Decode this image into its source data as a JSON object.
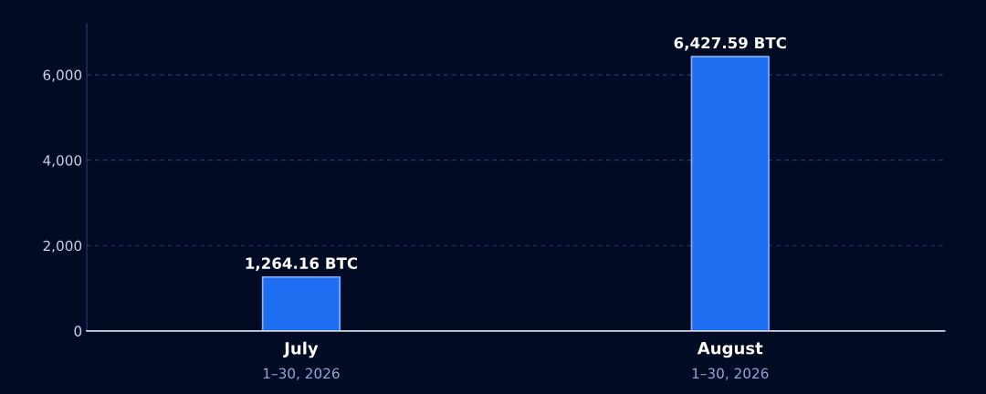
{
  "chart_data": {
    "type": "bar",
    "categories": [
      "July\n1–30, 2026",
      "August\n1–30, 2026"
    ],
    "values": [
      1264.16,
      6427.59
    ],
    "value_labels": [
      "1,264.16 BTC",
      "6,427.59 BTC"
    ],
    "color": "#1f6ef2",
    "ylim": [
      0,
      7200
    ],
    "yticks": [
      {
        "value": 0,
        "label": "0"
      },
      {
        "value": 2000,
        "label": "2,000"
      },
      {
        "value": 4000,
        "label": "4,000"
      },
      {
        "value": 6000,
        "label": "6,000"
      }
    ],
    "grid": "y"
  }
}
